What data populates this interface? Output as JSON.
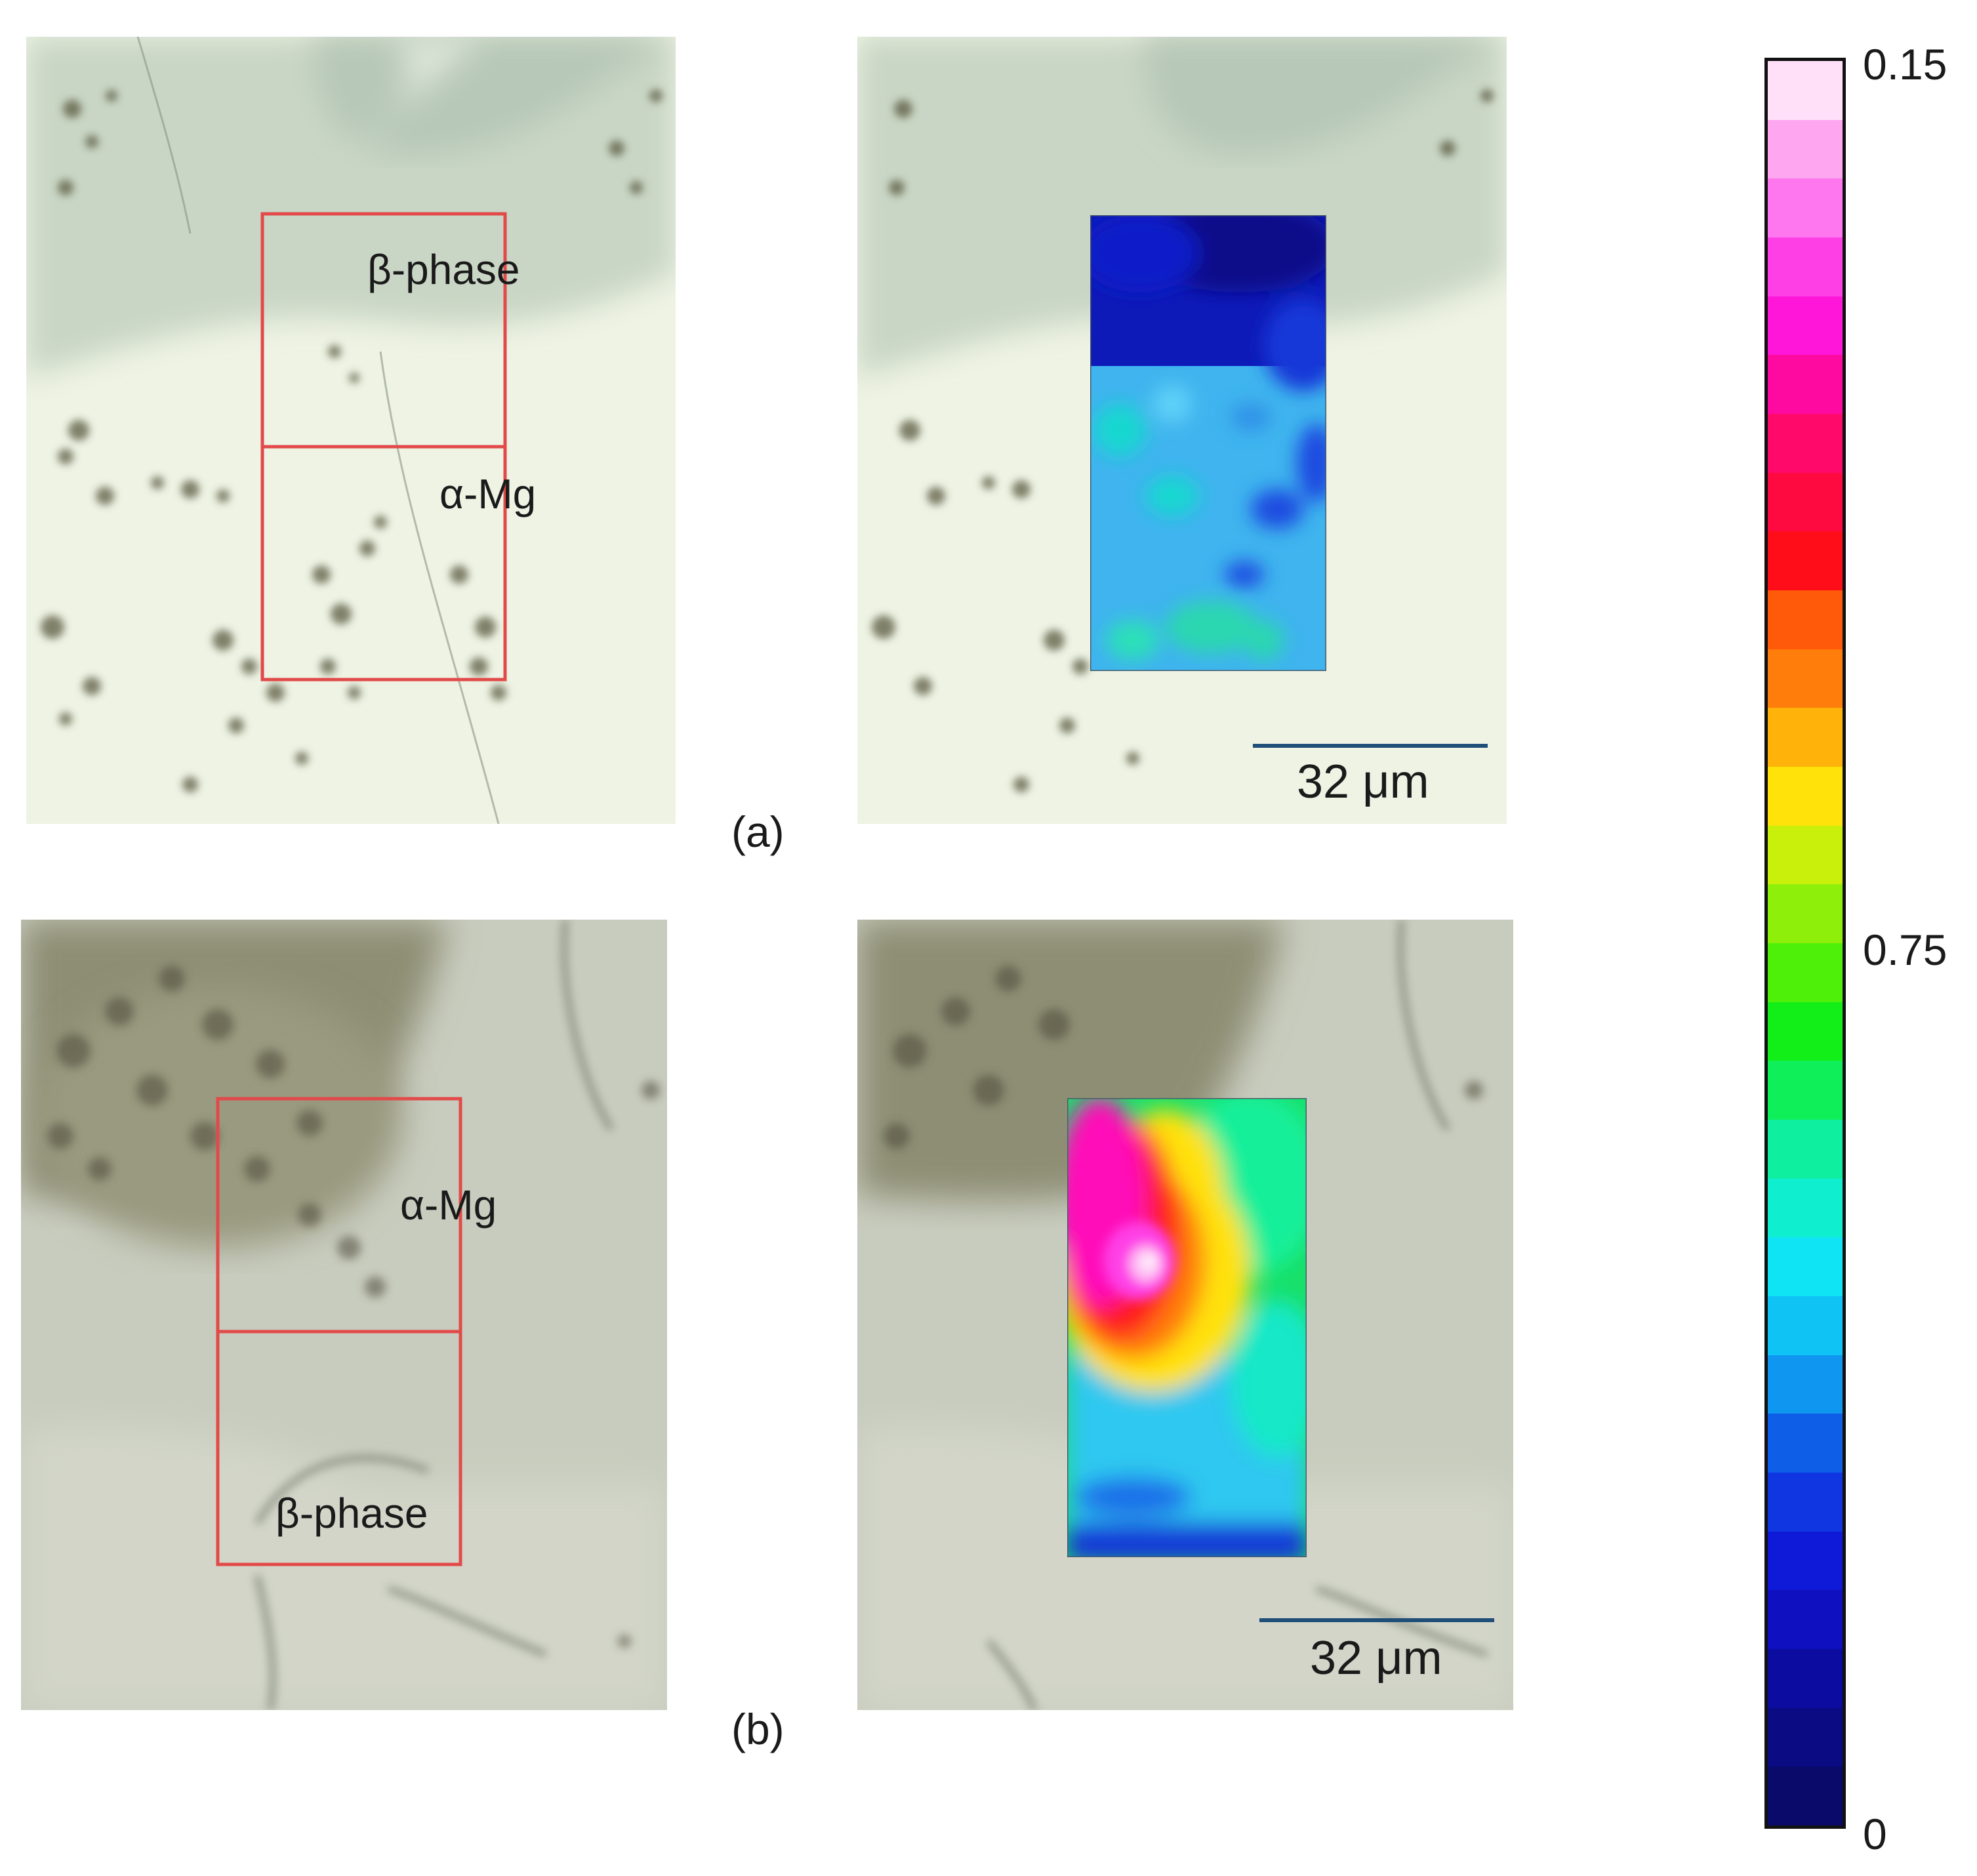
{
  "panels": {
    "a": {
      "label": "(a)",
      "region_upper": "β-phase",
      "region_lower": "α-Mg",
      "scale_bar": "32 μm",
      "map_palette": "blue (β-phase) to light blue/cyan (α-Mg)"
    },
    "b": {
      "label": "(b)",
      "region_upper": "α-Mg",
      "region_lower": "β-phase",
      "scale_bar": "32 μm",
      "map_palette": "magenta/white hot spot in α-Mg fading through red, yellow, green to blue at β-phase"
    }
  },
  "colorbar": {
    "ticks": [
      "0.15",
      "0.75",
      "0"
    ],
    "colors": [
      "#ffe0f8",
      "#ffa6f0",
      "#ff77ee",
      "#ff3fe6",
      "#ff16d8",
      "#ff0aa0",
      "#ff0a6a",
      "#ff0a40",
      "#ff0d18",
      "#ff5a0a",
      "#ff7d0a",
      "#ffb20a",
      "#ffe20a",
      "#c8f00a",
      "#8ef00a",
      "#4ef00a",
      "#12ef18",
      "#0fef5a",
      "#0fefa0",
      "#0fefd0",
      "#0fe4f4",
      "#0fc4f4",
      "#0f96f0",
      "#0f5ee8",
      "#0f36e0",
      "#0f1ad8",
      "#0f10c0",
      "#0c0ca0",
      "#0b0b84",
      "#0a0a6a"
    ]
  }
}
